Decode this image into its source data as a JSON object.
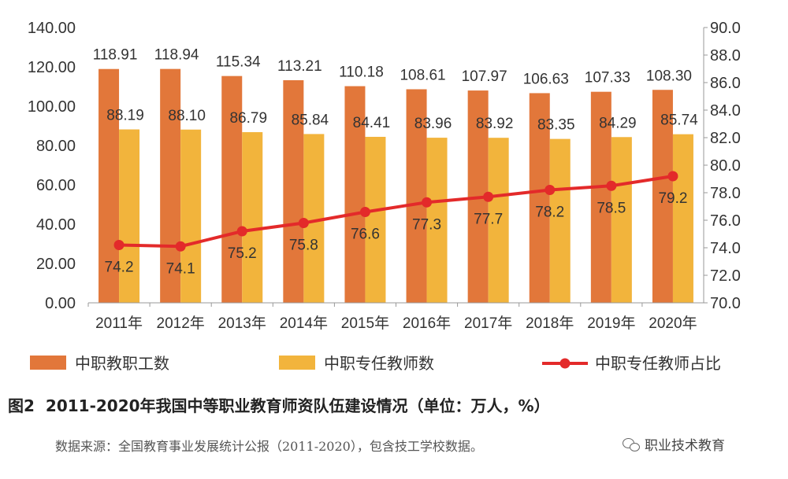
{
  "chart_data": {
    "type": "bar+line",
    "categories": [
      "2011年",
      "2012年",
      "2013年",
      "2014年",
      "2015年",
      "2016年",
      "2017年",
      "2018年",
      "2019年",
      "2020年"
    ],
    "series": [
      {
        "name": "中职教职工数",
        "type": "bar",
        "axis": "left",
        "color": "#e2773a",
        "values": [
          118.91,
          118.94,
          115.34,
          113.21,
          110.18,
          108.61,
          107.97,
          106.63,
          107.33,
          108.3
        ],
        "labels": [
          "118.91",
          "118.94",
          "115.34",
          "113.21",
          "110.18",
          "108.61",
          "107.97",
          "106.63",
          "107.33",
          "108.30"
        ]
      },
      {
        "name": "中职专任教师数",
        "type": "bar",
        "axis": "left",
        "color": "#f2b43c",
        "values": [
          88.19,
          88.1,
          86.79,
          85.84,
          84.41,
          83.96,
          83.92,
          83.35,
          84.29,
          85.74
        ],
        "labels": [
          "88.19",
          "88.10",
          "86.79",
          "85.84",
          "84.41",
          "83.96",
          "83.92",
          "83.35",
          "84.29",
          "85.74"
        ]
      },
      {
        "name": "中职专任教师占比",
        "type": "line",
        "axis": "right",
        "color": "#e32a2a",
        "values": [
          74.2,
          74.1,
          75.2,
          75.8,
          76.6,
          77.3,
          77.7,
          78.2,
          78.5,
          79.2
        ],
        "labels": [
          "74.2",
          "74.1",
          "75.2",
          "75.8",
          "76.6",
          "77.3",
          "77.7",
          "78.2",
          "78.5",
          "79.2"
        ]
      }
    ],
    "y_left": {
      "min": 0,
      "max": 140,
      "step": 20,
      "tick_labels": [
        "0.00",
        "20.00",
        "40.00",
        "60.00",
        "80.00",
        "100.00",
        "120.00",
        "140.00"
      ]
    },
    "y_right": {
      "min": 70,
      "max": 90,
      "step": 2,
      "tick_labels": [
        "70.0",
        "72.0",
        "74.0",
        "76.0",
        "78.0",
        "80.0",
        "82.0",
        "84.0",
        "86.0",
        "88.0",
        "90.0"
      ]
    },
    "legend_position": "bottom",
    "grid": false
  },
  "caption": {
    "label": "图2",
    "text": "2011-2020年我国中等职业教育师资队伍建设情况（单位：万人，%）"
  },
  "source": "数据来源：全国教育事业发展统计公报（2011-2020），包含技工学校数据。",
  "watermark": "职业技术教育",
  "watermark_icon": "wechat-icon"
}
